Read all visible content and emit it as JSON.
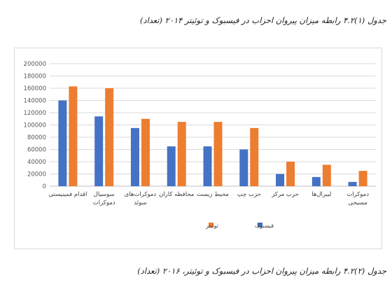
{
  "captions": {
    "top": "جدول (۱)۴.۲ رابطه میزان پیروان احزاب در فیسبوک و توئیتر ۲۰۱۴ (تعداد)",
    "bottom": "جدول (۲)۴.۲ رابطه میزان پیروان احزاب در فیسبوک و توئیتر، ۲۰۱۶ (تعداد)"
  },
  "chart_data": {
    "type": "bar",
    "title": "",
    "xlabel": "",
    "ylabel": "",
    "ylim": [
      0,
      200000
    ],
    "yticks": [
      "0",
      "20000",
      "40000",
      "60000",
      "80000",
      "100000",
      "120000",
      "140000",
      "160000",
      "180000",
      "200000"
    ],
    "grid": true,
    "legend_position": "bottom",
    "categories": [
      [
        "اقدام فمینیستی"
      ],
      [
        "سوسیال",
        "دموکرات"
      ],
      [
        "دموکرات‌های",
        "سوئد"
      ],
      [
        "محافظه کاران"
      ],
      [
        "محیط زیست"
      ],
      [
        "حزب چپ"
      ],
      [
        "حزب مرکز"
      ],
      [
        "لیبرال‌ها"
      ],
      [
        "دموکرات",
        "مسیحی"
      ]
    ],
    "series": [
      {
        "name": "فیسبوک",
        "color": "#4472c4",
        "values": [
          140000,
          114000,
          95000,
          65000,
          65000,
          60000,
          20000,
          15000,
          7000
        ]
      },
      {
        "name": "توئیتر",
        "color": "#ed7d31",
        "values": [
          163000,
          160000,
          110000,
          105000,
          105000,
          95000,
          40000,
          35000,
          25000
        ]
      }
    ]
  }
}
